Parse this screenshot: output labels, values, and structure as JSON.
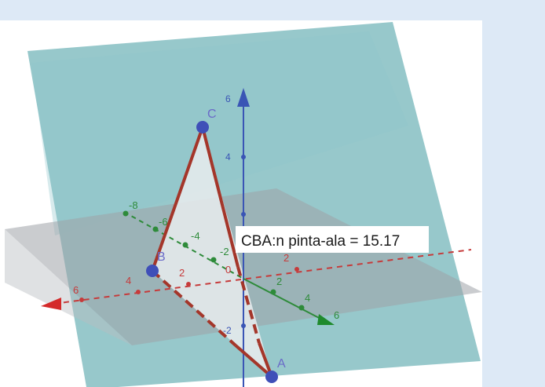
{
  "view": {
    "background": "#dde9f6",
    "canvas_background": "#ffffff"
  },
  "points": {
    "a": "A",
    "b": "B",
    "c": "C"
  },
  "info_label": "CBA:n pinta-ala = 15.17",
  "axes": {
    "x": {
      "color": "#c63b3b",
      "ticks": [
        {
          "label": "6"
        },
        {
          "label": "4"
        },
        {
          "label": "2"
        },
        {
          "label": "0"
        },
        {
          "label": "2"
        }
      ]
    },
    "y": {
      "color": "#2e8b3a",
      "ticks": [
        {
          "label": "-8"
        },
        {
          "label": "-6"
        },
        {
          "label": "-4"
        },
        {
          "label": "-2"
        },
        {
          "label": "2"
        },
        {
          "label": "4"
        },
        {
          "label": "6"
        }
      ]
    },
    "z": {
      "color": "#3a55b5",
      "ticks": [
        {
          "label": "6"
        },
        {
          "label": "4"
        },
        {
          "label": "-2"
        }
      ]
    }
  },
  "colors": {
    "triangle_edge": "#a4362a",
    "point_fill": "#3f4fb8",
    "vertical_plane": "#7ab9bd",
    "horizontal_plane": "#9ea3a8"
  }
}
